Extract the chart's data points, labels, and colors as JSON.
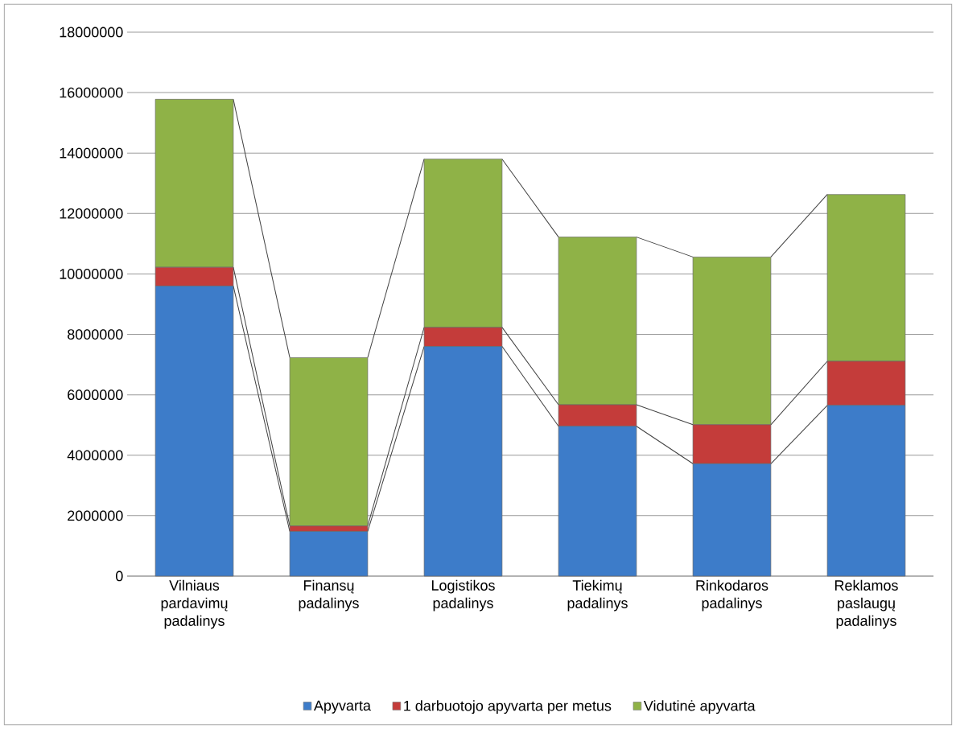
{
  "chart_data": {
    "type": "bar",
    "stacked": true,
    "categories": [
      "Vilniaus pardavimų padalinys",
      "Finansų padalinys",
      "Logistikos padalinys",
      "Tiekimų padalinys",
      "Rinkodaros padalinys",
      "Reklamos paslaugų padalinys"
    ],
    "series": [
      {
        "name": "Apyvarta",
        "color": "#3d7cc9",
        "values": [
          9600000,
          1480000,
          7600000,
          4960000,
          3720000,
          5650000
        ]
      },
      {
        "name": "1 darbuotojo apyvarta per metus",
        "color": "#c43c3a",
        "values": [
          620000,
          180000,
          630000,
          710000,
          1290000,
          1460000
        ]
      },
      {
        "name": "Vidutinė apyvarta",
        "color": "#8fb247",
        "values": [
          5560000,
          5570000,
          5570000,
          5550000,
          5550000,
          5520000
        ]
      }
    ],
    "ylim": [
      0,
      18000000
    ],
    "yticks": [
      0,
      2000000,
      4000000,
      6000000,
      8000000,
      10000000,
      12000000,
      14000000,
      16000000,
      18000000
    ],
    "grid": "y",
    "legend": "bottom"
  }
}
